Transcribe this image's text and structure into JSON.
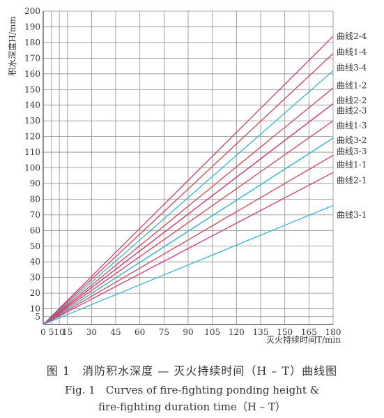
{
  "chart_data": {
    "type": "line",
    "xlabel": "灭火持续时间T/min",
    "ylabel": "积水深度H/mm",
    "xlim": [
      0,
      180
    ],
    "ylim": [
      0,
      200
    ],
    "x_ticks": [
      0,
      5,
      10,
      15,
      30,
      45,
      60,
      75,
      90,
      105,
      120,
      135,
      150,
      165,
      180
    ],
    "y_ticks": [
      5,
      10,
      20,
      30,
      40,
      50,
      60,
      70,
      80,
      90,
      100,
      110,
      120,
      130,
      140,
      150,
      160,
      170,
      180,
      190,
      200
    ],
    "grid": true,
    "series": [
      {
        "name": "曲线2-4",
        "color": "#d6357f",
        "x": [
          0,
          180
        ],
        "y": [
          0,
          184
        ]
      },
      {
        "name": "曲线1-4",
        "color": "#d94150",
        "x": [
          0,
          180
        ],
        "y": [
          0,
          173
        ]
      },
      {
        "name": "曲线3-4",
        "color": "#33b5d6",
        "x": [
          0,
          180
        ],
        "y": [
          0,
          162
        ]
      },
      {
        "name": "曲线1-2",
        "color": "#d94150",
        "x": [
          0,
          180
        ],
        "y": [
          0,
          151
        ]
      },
      {
        "name": "曲线2-2",
        "color": "#d6357f",
        "x": [
          0,
          180
        ],
        "y": [
          0,
          141
        ]
      },
      {
        "name": "曲线2-3",
        "color": "#d6357f",
        "x": [
          0,
          180
        ],
        "y": [
          0,
          141
        ]
      },
      {
        "name": "曲线1-3",
        "color": "#d94150",
        "x": [
          0,
          180
        ],
        "y": [
          0,
          130
        ]
      },
      {
        "name": "曲线3-2",
        "color": "#33b5d6",
        "x": [
          0,
          180
        ],
        "y": [
          0,
          119
        ]
      },
      {
        "name": "曲线3-3",
        "color": "#33b5d6",
        "x": [
          0,
          180
        ],
        "y": [
          0,
          119
        ]
      },
      {
        "name": "曲线1-1",
        "color": "#d94150",
        "x": [
          0,
          180
        ],
        "y": [
          0,
          108
        ]
      },
      {
        "name": "曲线2-1",
        "color": "#d6357f",
        "x": [
          0,
          180
        ],
        "y": [
          0,
          97
        ]
      },
      {
        "name": "曲线3-1",
        "color": "#33b5d6",
        "x": [
          0,
          180
        ],
        "y": [
          0,
          76
        ]
      }
    ],
    "line_labels": [
      {
        "text": "曲线2-4",
        "y": 184
      },
      {
        "text": "曲线1-4",
        "y": 174
      },
      {
        "text": "曲线3-4",
        "y": 164
      },
      {
        "text": "曲线1-2",
        "y": 152.5
      },
      {
        "text": "曲线2-2",
        "y": 143
      },
      {
        "text": "曲线2-3",
        "y": 136.5
      },
      {
        "text": "曲线1-3",
        "y": 127
      },
      {
        "text": "曲线3-2",
        "y": 117.5
      },
      {
        "text": "曲线3-3",
        "y": 110.5
      },
      {
        "text": "曲线1-1",
        "y": 102
      },
      {
        "text": "曲线2-1",
        "y": 92
      },
      {
        "text": "曲线3-1",
        "y": 70
      }
    ]
  },
  "caption": {
    "cn": "图 1　消防积水深度 — 灭火持续时间（H – T）曲线图",
    "en_line1": "Fig. 1　Curves of fire-fighting ponding height &",
    "en_line2": "fire-fighting duration time（H – T）"
  }
}
